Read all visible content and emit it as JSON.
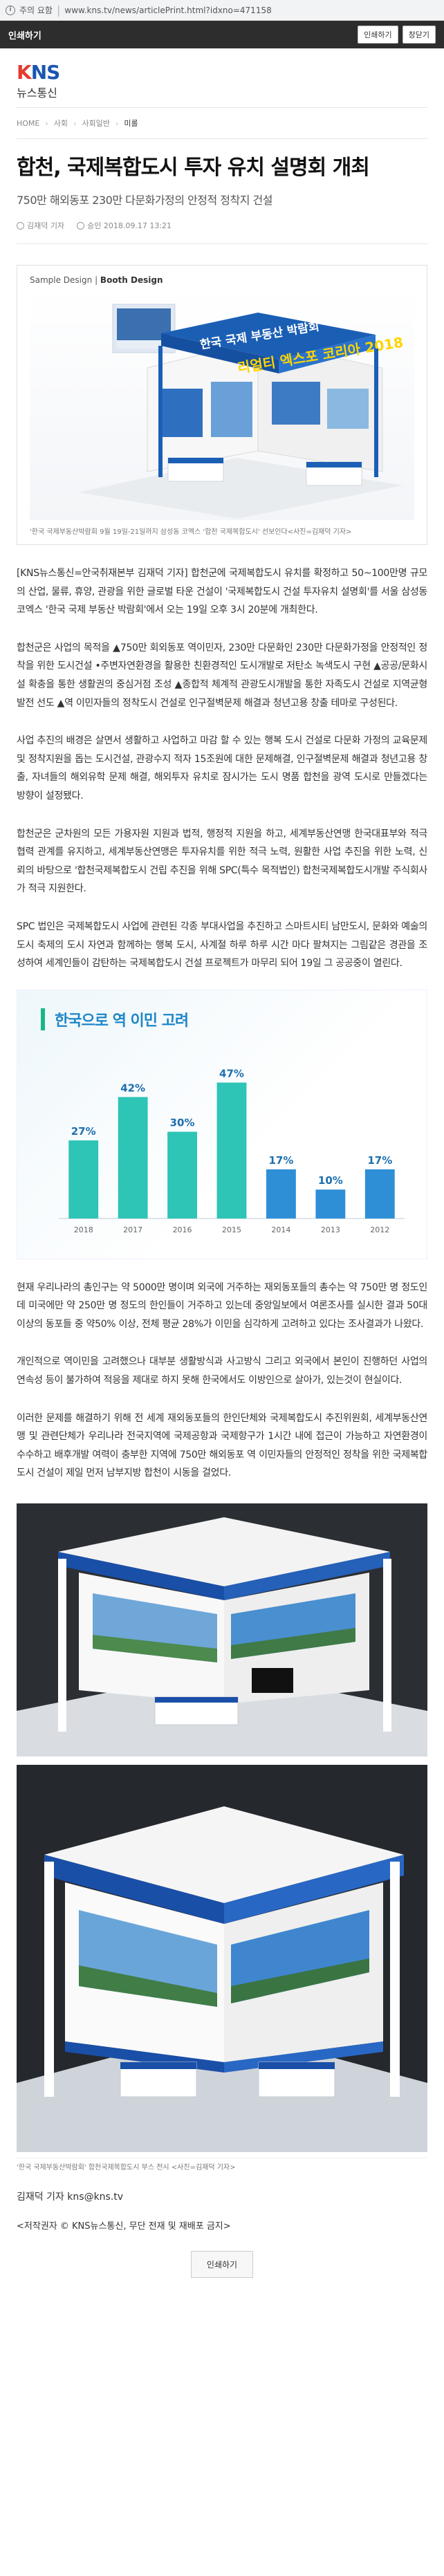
{
  "browser": {
    "security_label": "주의 요함",
    "url": "www.kns.tv/news/articlePrint.html?idxno=471158"
  },
  "printbar": {
    "title": "인쇄하기",
    "print_label": "인쇄하기",
    "close_label": "창닫기"
  },
  "logo": {
    "mark_k": "K",
    "mark_rest": "NS",
    "sub": "뉴스통신"
  },
  "breadcrumb": [
    "HOME",
    "사회",
    "사회일반",
    "미롤"
  ],
  "article": {
    "headline": "합천, 국제복합도시 투자 유치 설명회 개최",
    "subhead": "750만 해외동포 230만 다문화가정의 안정적 정착지 건설",
    "author": "김재덕 기자",
    "date": "승인 2018.09.17 13:21",
    "figure1": {
      "sample_label": "Sample Design",
      "sample_bold": "Booth Design",
      "booth_title": "한국 국제 부동산 박람회",
      "booth_brand": "리얼티 엑스포 코리아 2018",
      "caption": "'한국 국제부동산박람회 9월 19일-21일까지 삼성동 코엑스 '합천 국제복합도시' 선보인다<사진=김재덕 기자>"
    },
    "paragraphs": [
      "[KNS뉴스통신=안국취재본부 김재덕 기자] 합천군에 국제복합도시 유치를 확정하고 50~100만명 규모의 산업, 물류, 휴양, 관광을 위한 글로벌 타운 건설이 '국제복합도시 건설 투자유치 설명회'를 서울 삼성동 코엑스 '한국 국제 부동산 박람회'에서 오는 19일 오후 3시 20분에 개최한다.",
      "합천군은 사업의 목적을 ▲750만 회외동포 역이민자, 230만 다문화인 230만 다문화가정을 안정적인 정착을 위한 도시건설 •주변자연환경을 활용한 친환경적인 도시개발로 저탄소 녹색도시 구현 ▲공공/문화시설 확충을 통한 생활권의 중심거점 조성 ▲종합적 체계적 관광도시개발을 통한 자족도시 건설로 지역균형발전 선도 ▲역 이민자들의 정착도시 건설로 인구절벽문제 해결과 청년고용 창출 테마로 구성된다.",
      "사업 추진의 배경은 살면서 생활하고 사업하고 마감 할 수 있는 행복 도시 건설로 다문화 가정의 교육문제 및 정착지원을 돕는 도시건설, 관광수지 적자 15조원에 대한 문제해결, 인구절벽문제 해결과 청년고용 창출, 자녀들의 해외유학 문제 해결, 해외투자 유치로 잠시가는 도시 명품 합천을 광역 도시로 만들겠다는 방향이 설정됐다.",
      "합천군은 군차원의 모든 가용자원 지원과 법적, 행정적 지원을 하고, 세계부동산연맹 한국대표부와 적극 협력 관계를 유지하고, 세계부동산연맹은 투자유치를 위한 적극 노력, 원활한 사업 추진을 위한 노력, 신뢰의 바탕으로 '합천국제복합도시 건립 추진을 위해 SPC(특수 목적법인) 합천국제복합도시개발 주식회사가 적극 지원한다.",
      "SPC 법인은 국제복합도시 사업에 관련된 각종 부대사업을 추진하고 스마트시티 남만도시, 문화와 예술의 도시 축제의 도시 자연과 함께하는 행복 도시, 사계절 하루 하루 시간 마다 팔쳐지는 그림같은 경관을 조성하여 세계인들이 감탄하는 국제복합도시 건설 프로젝트가 마무리 되어 19일 그 공공중이 열린다.",
      "현재 우리나라의 총인구는 약 5000만 명이며 외국에 거주하는 재외동포들의 총수는 약 750만 명 정도인데 미국에만 약 250만 명 정도의 한인들이 거주하고 있는데 중앙일보에서 여론조사를 실시한 결과 50대 이상의 동포들 중 약50% 이상, 전체 평균 28%가 이민을 심각하게 고려하고 있다는 조사결과가 나왔다.",
      "개인적으로 역이민을 고려했으나 대부분 생활방식과 사고방식 그리고 외국에서 본인이 진행하던 사업의 연속성 등이 불가하여 적응을 제대로 하지 못해 한국에서도 이방인으로 살아가, 있는것이 현실이다.",
      "이러한 문제를 해결하기 위해 전 세계 재외동포들의 한인단체와 국제복합도시 추진위원회, 세계부동산연맹 및 관련단체가 우리나라 전국지역에 국제공항과 국제항구가 1시간 내에 접근이 가능하고 자연환경이 수수하고 배후개발 여력이 충부한 지역에 750만 해외동포 역 이민자들의 안정적인 정착을 위한 국제복합도시 건설이 제일 먼저 남부지방 합천이 시동을 걸었다."
    ],
    "render_caption": "'한국 국제부동산박람회' 합천국제복합도시 부스 전시 <사진=김재덕 기자>",
    "byline": "김재덕 기자  kns@kns.tv",
    "copyright": "<저작권자 © KNS뉴스통신, 무단 전재 및 재배포 금지>",
    "bottom_print": "인쇄하기"
  },
  "chart_data": {
    "type": "bar",
    "title": "한국으로 역 이민 고려",
    "categories": [
      "2018",
      "2017",
      "2016",
      "2015",
      "2014",
      "2013",
      "2012"
    ],
    "values": [
      27,
      42,
      30,
      47,
      17,
      10,
      17
    ],
    "value_labels": [
      "27%",
      "42%",
      "30%",
      "47%",
      "17%",
      "10%",
      "17%"
    ],
    "colors": {
      "bar_a": "#2e8fd6",
      "bar_b": "#2ec4b6",
      "accent": "#1e86c8"
    },
    "ylim": [
      0,
      55
    ],
    "grid": false
  }
}
